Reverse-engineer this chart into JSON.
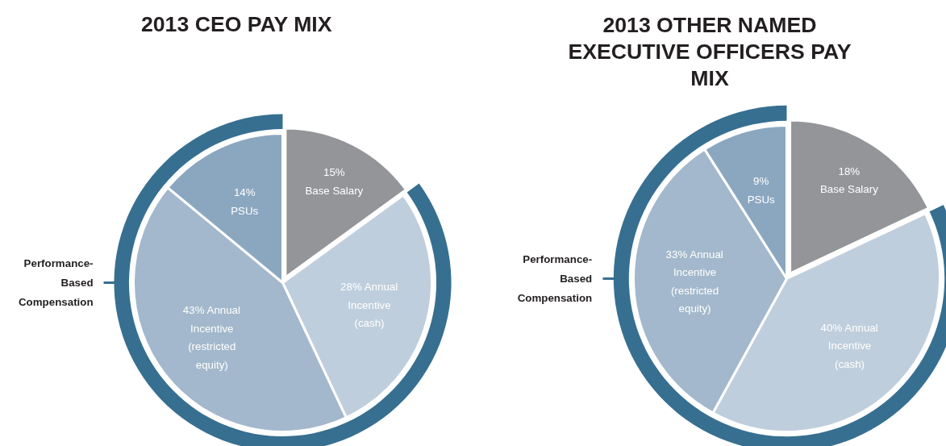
{
  "chart_data": [
    {
      "type": "pie",
      "title": "2013 CEO PAY MIX",
      "categories": [
        "Base Salary",
        "Annual Incentive (cash)",
        "Annual Incentive (restricted equity)",
        "PSUs"
      ],
      "values": [
        15,
        28,
        43,
        14
      ],
      "value_labels": [
        "15%",
        "28%",
        "43%",
        "14%"
      ],
      "colors": [
        "#939598",
        "#bfcedc",
        "#a3b8cc",
        "#8ba7c0"
      ],
      "annotations": [
        "Performance-Based Compensation"
      ]
    },
    {
      "type": "pie",
      "title": "2013 OTHER NAMED EXECUTIVE OFFICERS PAY MIX",
      "categories": [
        "Base Salary",
        "Annual Incentive (cash)",
        "Annual Incentive (restricted equity)",
        "PSUs"
      ],
      "values": [
        18,
        40,
        33,
        9
      ],
      "value_labels": [
        "18%",
        "40%",
        "33%",
        "9%"
      ],
      "colors": [
        "#939598",
        "#bfcedc",
        "#a3b8cc",
        "#8ba7c0"
      ],
      "annotations": [
        "Performance-Based Compensation"
      ]
    }
  ]
}
